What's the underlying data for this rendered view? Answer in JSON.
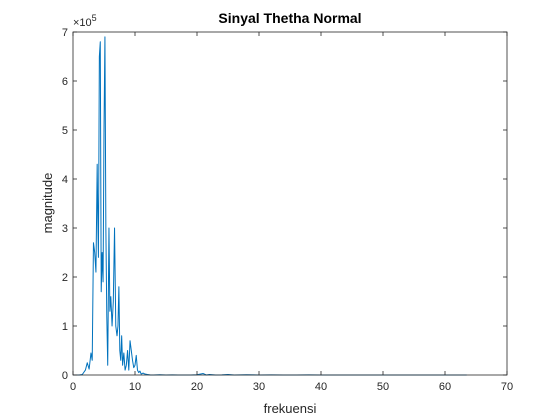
{
  "chart_data": {
    "type": "line",
    "title": "Sinyal Thetha Normal",
    "xlabel": "frekuensi",
    "ylabel": "magnitude",
    "y_exponent_label": "×10",
    "y_exponent": "5",
    "xlim": [
      0,
      70
    ],
    "ylim": [
      0,
      7
    ],
    "y_scale_factor": 100000,
    "grid": false,
    "x_ticks": [
      0,
      10,
      20,
      30,
      40,
      50,
      60,
      70
    ],
    "y_ticks": [
      0,
      1,
      2,
      3,
      4,
      5,
      6,
      7
    ],
    "series": [
      {
        "color": "#0072BD",
        "x": [
          0,
          0.5,
          1,
          1.5,
          2,
          2.3,
          2.6,
          2.9,
          3.1,
          3.3,
          3.5,
          3.7,
          3.9,
          4.0,
          4.1,
          4.25,
          4.4,
          4.55,
          4.7,
          4.85,
          5.0,
          5.15,
          5.3,
          5.45,
          5.6,
          5.8,
          5.95,
          6.1,
          6.3,
          6.5,
          6.7,
          6.9,
          7.1,
          7.25,
          7.4,
          7.55,
          7.7,
          7.85,
          8.0,
          8.2,
          8.4,
          8.6,
          8.8,
          9.0,
          9.2,
          9.4,
          9.6,
          9.8,
          10.0,
          10.2,
          10.4,
          10.6,
          10.8,
          11.0,
          11.3,
          11.6,
          12.0,
          12.5,
          13,
          14,
          15,
          16,
          17,
          18,
          19,
          20,
          21,
          21.5,
          22,
          23,
          24,
          25,
          26,
          28,
          30,
          32,
          34,
          36,
          38,
          40,
          42,
          44,
          46,
          48,
          50,
          52,
          54,
          56,
          58,
          60,
          62,
          63.5
        ],
        "values": [
          0.0,
          0.0,
          0.0,
          0.01,
          0.1,
          0.25,
          0.12,
          0.45,
          0.3,
          2.7,
          2.5,
          2.1,
          4.3,
          3.2,
          2.4,
          6.5,
          6.8,
          1.7,
          2.5,
          1.9,
          5.0,
          6.9,
          3.0,
          1.2,
          0.2,
          3.0,
          1.3,
          1.6,
          1.0,
          1.5,
          3.0,
          1.0,
          0.8,
          1.0,
          1.8,
          0.5,
          0.3,
          0.8,
          0.2,
          0.45,
          0.1,
          0.2,
          0.5,
          0.1,
          0.7,
          0.5,
          0.3,
          0.15,
          0.2,
          0.4,
          0.1,
          0.05,
          0.08,
          0.02,
          0.04,
          0.02,
          0.01,
          0.0,
          0.0,
          0.005,
          0.0,
          0.003,
          0.0,
          0.0,
          0.0,
          0.005,
          0.03,
          0.0,
          0.01,
          0.0,
          0.003,
          0.01,
          0.0,
          0.004,
          0.0,
          0.002,
          0.0,
          0.0,
          0.002,
          0.0,
          0.0,
          0.0,
          0.001,
          0.0,
          0.0,
          0.0,
          0.001,
          0.0,
          0.0,
          0.0,
          0.0,
          0.0
        ]
      }
    ]
  }
}
